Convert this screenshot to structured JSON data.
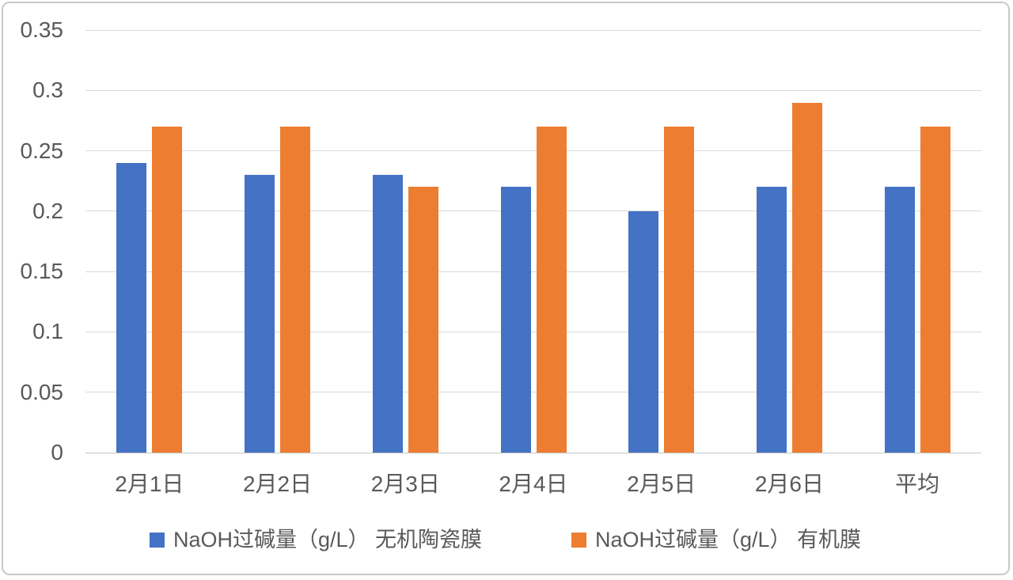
{
  "chart_data": {
    "type": "bar",
    "title": "",
    "categories": [
      "2月1日",
      "2月2日",
      "2月3日",
      "2月4日",
      "2月5日",
      "2月6日",
      "平均"
    ],
    "series": [
      {
        "name": "NaOH过碱量（g/L） 无机陶瓷膜",
        "color": "#4472C4",
        "values": [
          0.24,
          0.23,
          0.23,
          0.22,
          0.2,
          0.22,
          0.22
        ]
      },
      {
        "name": "NaOH过碱量（g/L） 有机膜",
        "color": "#ED7D31",
        "values": [
          0.27,
          0.27,
          0.22,
          0.27,
          0.27,
          0.29,
          0.27
        ]
      }
    ],
    "xlabel": "",
    "ylabel": "",
    "ylim": [
      0,
      0.35
    ],
    "yticks": [
      {
        "value": 0,
        "label": "0"
      },
      {
        "value": 0.05,
        "label": "0.05"
      },
      {
        "value": 0.1,
        "label": "0.1"
      },
      {
        "value": 0.15,
        "label": "0.15"
      },
      {
        "value": 0.2,
        "label": "0.2"
      },
      {
        "value": 0.25,
        "label": "0.25"
      },
      {
        "value": 0.3,
        "label": "0.3"
      },
      {
        "value": 0.35,
        "label": "0.35"
      }
    ],
    "grid": true,
    "legend_position": "bottom",
    "styles": {
      "text_color": "#595959",
      "gridline_color": "#D9D9D9",
      "baseline_color": "#C4C4C4",
      "background": "#FFFFFF",
      "frame_border_color": "#C9C9C9"
    }
  }
}
